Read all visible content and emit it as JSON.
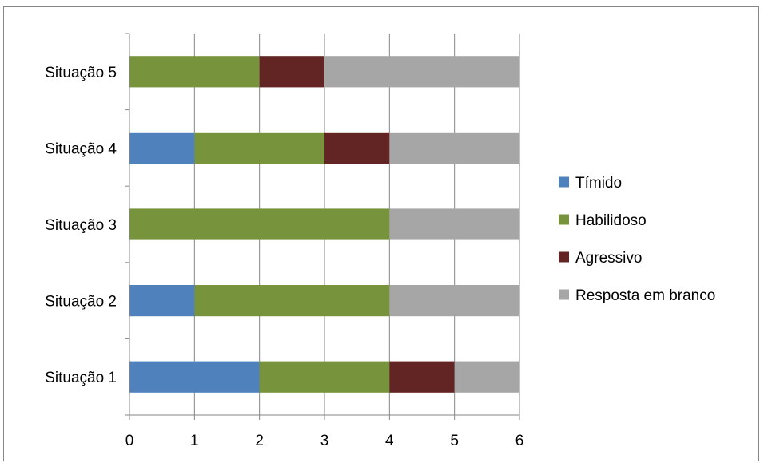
{
  "chart_data": {
    "type": "bar",
    "orientation": "horizontal",
    "stacked": true,
    "categories": [
      "Situação 1",
      "Situação 2",
      "Situação 3",
      "Situação 4",
      "Situação 5"
    ],
    "series": [
      {
        "name": "Tímido",
        "values": [
          2,
          1,
          0,
          1,
          0
        ],
        "color": "#4f81bd"
      },
      {
        "name": "Habilidoso",
        "values": [
          2,
          3,
          4,
          2,
          2
        ],
        "color": "#77933c"
      },
      {
        "name": "Agressivo",
        "values": [
          1,
          0,
          0,
          1,
          1
        ],
        "color": "#632523"
      },
      {
        "name": "Resposta em branco",
        "values": [
          1,
          2,
          2,
          2,
          3
        ],
        "color": "#a6a6a6"
      }
    ],
    "xlim": [
      0,
      6
    ],
    "xticks": [
      0,
      1,
      2,
      3,
      4,
      5,
      6
    ],
    "grid": true,
    "legend_position": "right",
    "title": "",
    "xlabel": "",
    "ylabel": ""
  }
}
